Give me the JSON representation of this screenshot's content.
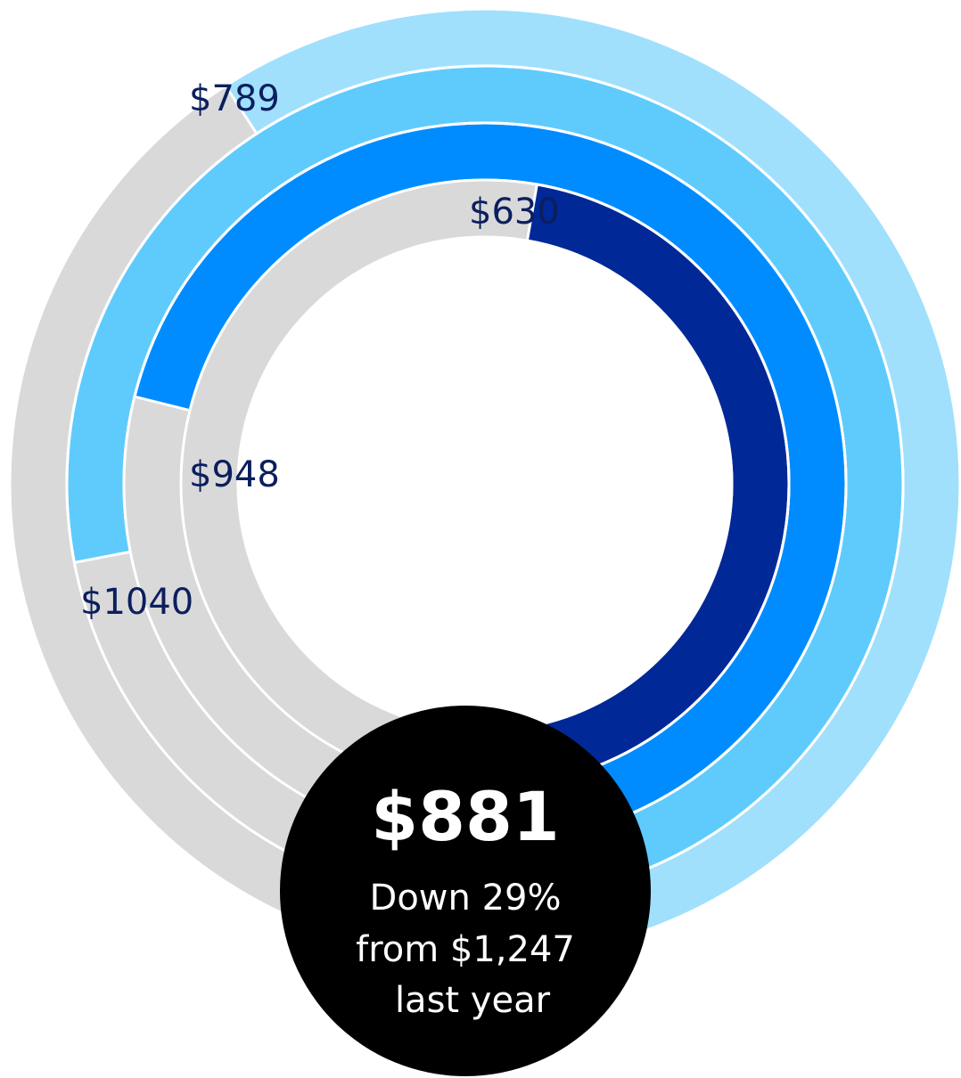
{
  "chart_data": {
    "type": "radial_bar",
    "values": [
      789,
      1040,
      948,
      630
    ],
    "value_labels": [
      "$789",
      "$1040",
      "$948",
      "$630"
    ],
    "colors": [
      "#a0e0fd",
      "#5fcbfd",
      "#008cff",
      "#002896"
    ],
    "track_color": "#d9d9d9",
    "ylim": [
      0,
      1333
    ],
    "annotations": [
      "$881",
      "Down 29%",
      "from $1,247",
      "last year"
    ]
  }
}
